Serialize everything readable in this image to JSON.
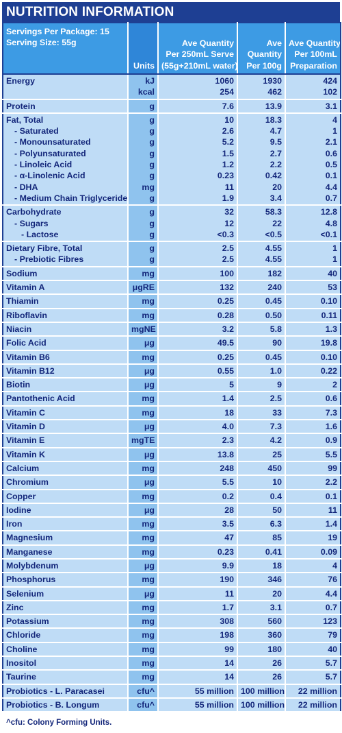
{
  "title": "NUTRITION INFORMATION",
  "header": {
    "servings_per_package": "Servings Per Package: 15",
    "serving_size": "Serving Size: 55g",
    "units": "Units",
    "col_serve": [
      "Ave Quantity",
      "Per 250mL Serve",
      "(55g+210mL water)"
    ],
    "col_100g": [
      "Ave",
      "Quantity",
      "Per 100g"
    ],
    "col_100ml": [
      "Ave Quantity",
      "Per 100mL",
      "Preparation"
    ]
  },
  "groups": [
    {
      "rows": [
        {
          "name": "Energy",
          "indent": 0,
          "unit": "kJ",
          "serve": "1060",
          "g100": "1930",
          "ml100": "424"
        },
        {
          "name": "",
          "indent": 0,
          "unit": "kcal",
          "serve": "254",
          "g100": "462",
          "ml100": "102"
        }
      ]
    },
    {
      "rows": [
        {
          "name": "Protein",
          "indent": 0,
          "unit": "g",
          "serve": "7.6",
          "g100": "13.9",
          "ml100": "3.1"
        }
      ]
    },
    {
      "rows": [
        {
          "name": "Fat, Total",
          "indent": 0,
          "unit": "g",
          "serve": "10",
          "g100": "18.3",
          "ml100": "4"
        },
        {
          "name": "- Saturated",
          "indent": 1,
          "unit": "g",
          "serve": "2.6",
          "g100": "4.7",
          "ml100": "1"
        },
        {
          "name": "- Monounsaturated",
          "indent": 1,
          "unit": "g",
          "serve": "5.2",
          "g100": "9.5",
          "ml100": "2.1"
        },
        {
          "name": "- Polyunsaturated",
          "indent": 1,
          "unit": "g",
          "serve": "1.5",
          "g100": "2.7",
          "ml100": "0.6"
        },
        {
          "name": "- Linoleic Acid",
          "indent": 1,
          "unit": "g",
          "serve": "1.2",
          "g100": "2.2",
          "ml100": "0.5"
        },
        {
          "name": "- α-Linolenic Acid",
          "indent": 1,
          "unit": "g",
          "serve": "0.23",
          "g100": "0.42",
          "ml100": "0.1"
        },
        {
          "name": "- DHA",
          "indent": 1,
          "unit": "mg",
          "serve": "11",
          "g100": "20",
          "ml100": "4.4"
        },
        {
          "name": "- Medium Chain Triglycerides",
          "indent": 1,
          "unit": "g",
          "serve": "1.9",
          "g100": "3.4",
          "ml100": "0.7"
        }
      ]
    },
    {
      "rows": [
        {
          "name": "Carbohydrate",
          "indent": 0,
          "unit": "g",
          "serve": "32",
          "g100": "58.3",
          "ml100": "12.8"
        },
        {
          "name": "- Sugars",
          "indent": 1,
          "unit": "g",
          "serve": "12",
          "g100": "22",
          "ml100": "4.8"
        },
        {
          "name": "- Lactose",
          "indent": 2,
          "unit": "g",
          "serve": "<0.3",
          "g100": "<0.5",
          "ml100": "<0.1"
        }
      ]
    },
    {
      "rows": [
        {
          "name": "Dietary Fibre, Total",
          "indent": 0,
          "unit": "g",
          "serve": "2.5",
          "g100": "4.55",
          "ml100": "1"
        },
        {
          "name": "- Prebiotic Fibres",
          "indent": 1,
          "unit": "g",
          "serve": "2.5",
          "g100": "4.55",
          "ml100": "1"
        }
      ]
    },
    {
      "rows": [
        {
          "name": "Sodium",
          "indent": 0,
          "unit": "mg",
          "serve": "100",
          "g100": "182",
          "ml100": "40"
        }
      ]
    },
    {
      "rows": [
        {
          "name": "Vitamin A",
          "indent": 0,
          "unit": "μgRE",
          "serve": "132",
          "g100": "240",
          "ml100": "53"
        }
      ]
    },
    {
      "rows": [
        {
          "name": "Thiamin",
          "indent": 0,
          "unit": "mg",
          "serve": "0.25",
          "g100": "0.45",
          "ml100": "0.10"
        }
      ]
    },
    {
      "rows": [
        {
          "name": "Riboflavin",
          "indent": 0,
          "unit": "mg",
          "serve": "0.28",
          "g100": "0.50",
          "ml100": "0.11"
        }
      ]
    },
    {
      "rows": [
        {
          "name": "Niacin",
          "indent": 0,
          "unit": "mgNE",
          "serve": "3.2",
          "g100": "5.8",
          "ml100": "1.3"
        }
      ]
    },
    {
      "rows": [
        {
          "name": "Folic Acid",
          "indent": 0,
          "unit": "μg",
          "serve": "49.5",
          "g100": "90",
          "ml100": "19.8"
        }
      ]
    },
    {
      "rows": [
        {
          "name": "Vitamin B6",
          "indent": 0,
          "unit": "mg",
          "serve": "0.25",
          "g100": "0.45",
          "ml100": "0.10"
        }
      ]
    },
    {
      "rows": [
        {
          "name": "Vitamin B12",
          "indent": 0,
          "unit": "μg",
          "serve": "0.55",
          "g100": "1.0",
          "ml100": "0.22"
        }
      ]
    },
    {
      "rows": [
        {
          "name": "Biotin",
          "indent": 0,
          "unit": "μg",
          "serve": "5",
          "g100": "9",
          "ml100": "2"
        }
      ]
    },
    {
      "rows": [
        {
          "name": "Pantothenic Acid",
          "indent": 0,
          "unit": "mg",
          "serve": "1.4",
          "g100": "2.5",
          "ml100": "0.6"
        }
      ]
    },
    {
      "rows": [
        {
          "name": "Vitamin C",
          "indent": 0,
          "unit": "mg",
          "serve": "18",
          "g100": "33",
          "ml100": "7.3"
        }
      ]
    },
    {
      "rows": [
        {
          "name": "Vitamin D",
          "indent": 0,
          "unit": "μg",
          "serve": "4.0",
          "g100": "7.3",
          "ml100": "1.6"
        }
      ]
    },
    {
      "rows": [
        {
          "name": "Vitamin E",
          "indent": 0,
          "unit": "mgTE",
          "serve": "2.3",
          "g100": "4.2",
          "ml100": "0.9"
        }
      ]
    },
    {
      "rows": [
        {
          "name": "Vitamin K",
          "indent": 0,
          "unit": "μg",
          "serve": "13.8",
          "g100": "25",
          "ml100": "5.5"
        }
      ]
    },
    {
      "rows": [
        {
          "name": "Calcium",
          "indent": 0,
          "unit": "mg",
          "serve": "248",
          "g100": "450",
          "ml100": "99"
        }
      ]
    },
    {
      "rows": [
        {
          "name": "Chromium",
          "indent": 0,
          "unit": "μg",
          "serve": "5.5",
          "g100": "10",
          "ml100": "2.2"
        }
      ]
    },
    {
      "rows": [
        {
          "name": "Copper",
          "indent": 0,
          "unit": "mg",
          "serve": "0.2",
          "g100": "0.4",
          "ml100": "0.1"
        }
      ]
    },
    {
      "rows": [
        {
          "name": "Iodine",
          "indent": 0,
          "unit": "μg",
          "serve": "28",
          "g100": "50",
          "ml100": "11"
        }
      ]
    },
    {
      "rows": [
        {
          "name": "Iron",
          "indent": 0,
          "unit": "mg",
          "serve": "3.5",
          "g100": "6.3",
          "ml100": "1.4"
        }
      ]
    },
    {
      "rows": [
        {
          "name": "Magnesium",
          "indent": 0,
          "unit": "mg",
          "serve": "47",
          "g100": "85",
          "ml100": "19"
        }
      ]
    },
    {
      "rows": [
        {
          "name": "Manganese",
          "indent": 0,
          "unit": "mg",
          "serve": "0.23",
          "g100": "0.41",
          "ml100": "0.09"
        }
      ]
    },
    {
      "rows": [
        {
          "name": "Molybdenum",
          "indent": 0,
          "unit": "μg",
          "serve": "9.9",
          "g100": "18",
          "ml100": "4"
        }
      ]
    },
    {
      "rows": [
        {
          "name": "Phosphorus",
          "indent": 0,
          "unit": "mg",
          "serve": "190",
          "g100": "346",
          "ml100": "76"
        }
      ]
    },
    {
      "rows": [
        {
          "name": "Selenium",
          "indent": 0,
          "unit": "μg",
          "serve": "11",
          "g100": "20",
          "ml100": "4.4"
        }
      ]
    },
    {
      "rows": [
        {
          "name": "Zinc",
          "indent": 0,
          "unit": "mg",
          "serve": "1.7",
          "g100": "3.1",
          "ml100": "0.7"
        }
      ]
    },
    {
      "rows": [
        {
          "name": "Potassium",
          "indent": 0,
          "unit": "mg",
          "serve": "308",
          "g100": "560",
          "ml100": "123"
        }
      ]
    },
    {
      "rows": [
        {
          "name": "Chloride",
          "indent": 0,
          "unit": "mg",
          "serve": "198",
          "g100": "360",
          "ml100": "79"
        }
      ]
    },
    {
      "rows": [
        {
          "name": "Choline",
          "indent": 0,
          "unit": "mg",
          "serve": "99",
          "g100": "180",
          "ml100": "40"
        }
      ]
    },
    {
      "rows": [
        {
          "name": "Inositol",
          "indent": 0,
          "unit": "mg",
          "serve": "14",
          "g100": "26",
          "ml100": "5.7"
        }
      ]
    },
    {
      "rows": [
        {
          "name": "Taurine",
          "indent": 0,
          "unit": "mg",
          "serve": "14",
          "g100": "26",
          "ml100": "5.7"
        }
      ]
    },
    {
      "rows": [
        {
          "name": "Probiotics - L. Paracasei",
          "indent": 0,
          "unit": "cfu^",
          "serve": "55 million",
          "g100": "100 million",
          "ml100": "22 million"
        }
      ]
    },
    {
      "rows": [
        {
          "name": "Probiotics - B. Longum",
          "indent": 0,
          "unit": "cfu^",
          "serve": "55 million",
          "g100": "100 million",
          "ml100": "22 million"
        }
      ]
    }
  ],
  "footnote": "^cfu: Colony Forming Units.",
  "colors": {
    "title_bg": "#1e3f93",
    "header_bg": "#3d9be4",
    "units_col": "#8fc3ee",
    "cell_bg": "#bfdcf6",
    "text": "#13267a"
  }
}
